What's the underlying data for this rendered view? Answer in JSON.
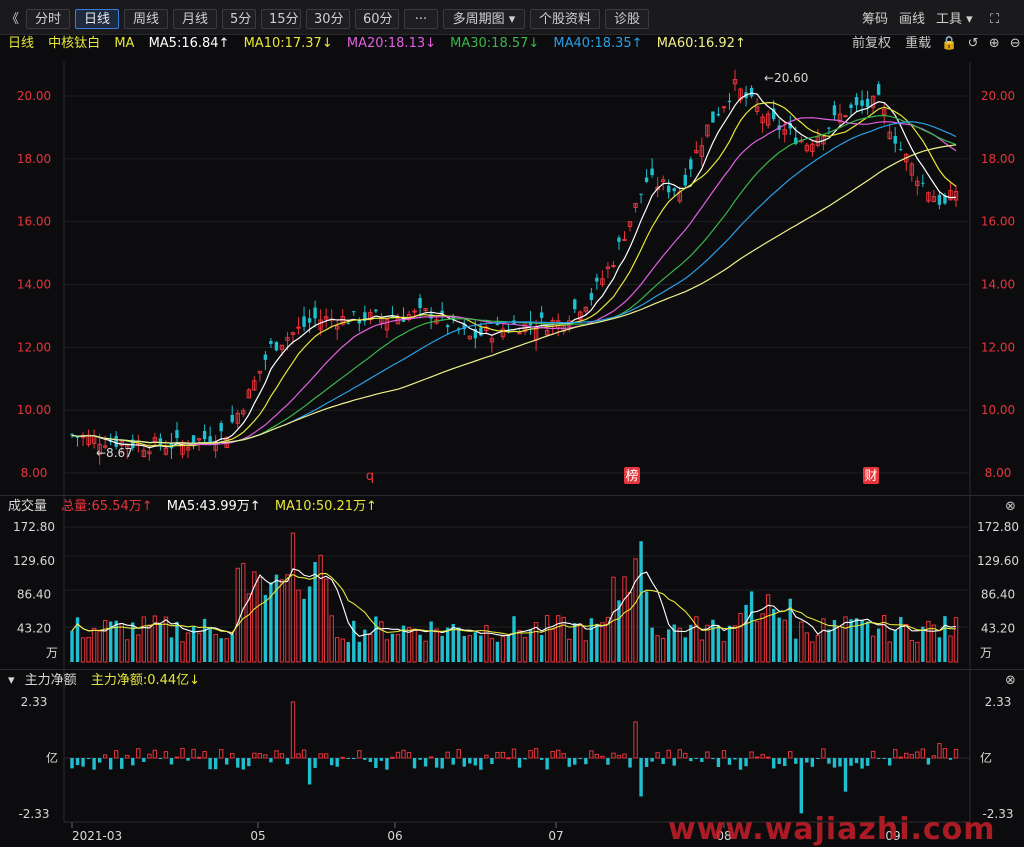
{
  "toolbar": {
    "back_glyph": "《",
    "tabs": [
      "分时",
      "日线",
      "周线",
      "月线",
      "5分",
      "15分",
      "30分",
      "60分",
      "···",
      "多周期图 ▾",
      "个股资料",
      "诊股"
    ],
    "active_tab": "日线",
    "right": [
      "筹码",
      "画线",
      "工具 ▾",
      "⛶"
    ]
  },
  "price_header": {
    "period": "日线",
    "stock": "中核钛白",
    "ma_label": "MA",
    "ma5": "MA5:16.84↑",
    "ma10": "MA10:17.37↓",
    "ma20": "MA20:18.13↓",
    "ma30": "MA30:18.57↓",
    "ma40": "MA40:18.35↑",
    "ma60": "MA60:16.92↑",
    "adjust": "前复权",
    "restore": "重载",
    "icons": [
      "lock-icon",
      "undo-icon",
      "zoom-in-icon",
      "zoom-out-icon",
      "close-icon"
    ]
  },
  "volume_header": {
    "title": "成交量",
    "total": "总量:65.54万↑",
    "ma5": "MA5:43.99万↑",
    "ma10": "MA10:50.21万↑"
  },
  "flow_header": {
    "title": "主力净额",
    "value": "主力净额:0.44亿↓"
  },
  "colors": {
    "up": "#e8343b",
    "down": "#1fbfcf",
    "ma5": "#ffffff",
    "ma10": "#e6e63c",
    "ma20": "#e060e0",
    "ma30": "#3bb54a",
    "ma40": "#2a9fe6",
    "ma60": "#f0f08c"
  },
  "chart_data": [
    {
      "type": "candlestick",
      "ylim": [
        8.0,
        20.6
      ],
      "yticks": [
        "20.00",
        "18.00",
        "16.00",
        "14.00",
        "12.00",
        "10.00",
        "8.00"
      ],
      "xticks": [
        "2021-03",
        "05",
        "06",
        "07",
        "08",
        "09"
      ],
      "annotations": {
        "high": "20.60",
        "low": "8.67"
      },
      "markers": [
        "q",
        "榜",
        "财"
      ],
      "series": [
        {
          "name": "MA5"
        },
        {
          "name": "MA10"
        },
        {
          "name": "MA20"
        },
        {
          "name": "MA30"
        },
        {
          "name": "MA40"
        },
        {
          "name": "MA60"
        }
      ]
    },
    {
      "type": "bar",
      "yticks": [
        "172.80",
        "129.60",
        "86.40",
        "43.20"
      ],
      "unit": "万",
      "series": [
        {
          "name": "MA5"
        },
        {
          "name": "MA10"
        }
      ]
    },
    {
      "type": "bar",
      "yticks": [
        "2.33",
        "-2.33"
      ],
      "unit": "亿"
    }
  ],
  "watermark": "www.wajiazhi.com"
}
